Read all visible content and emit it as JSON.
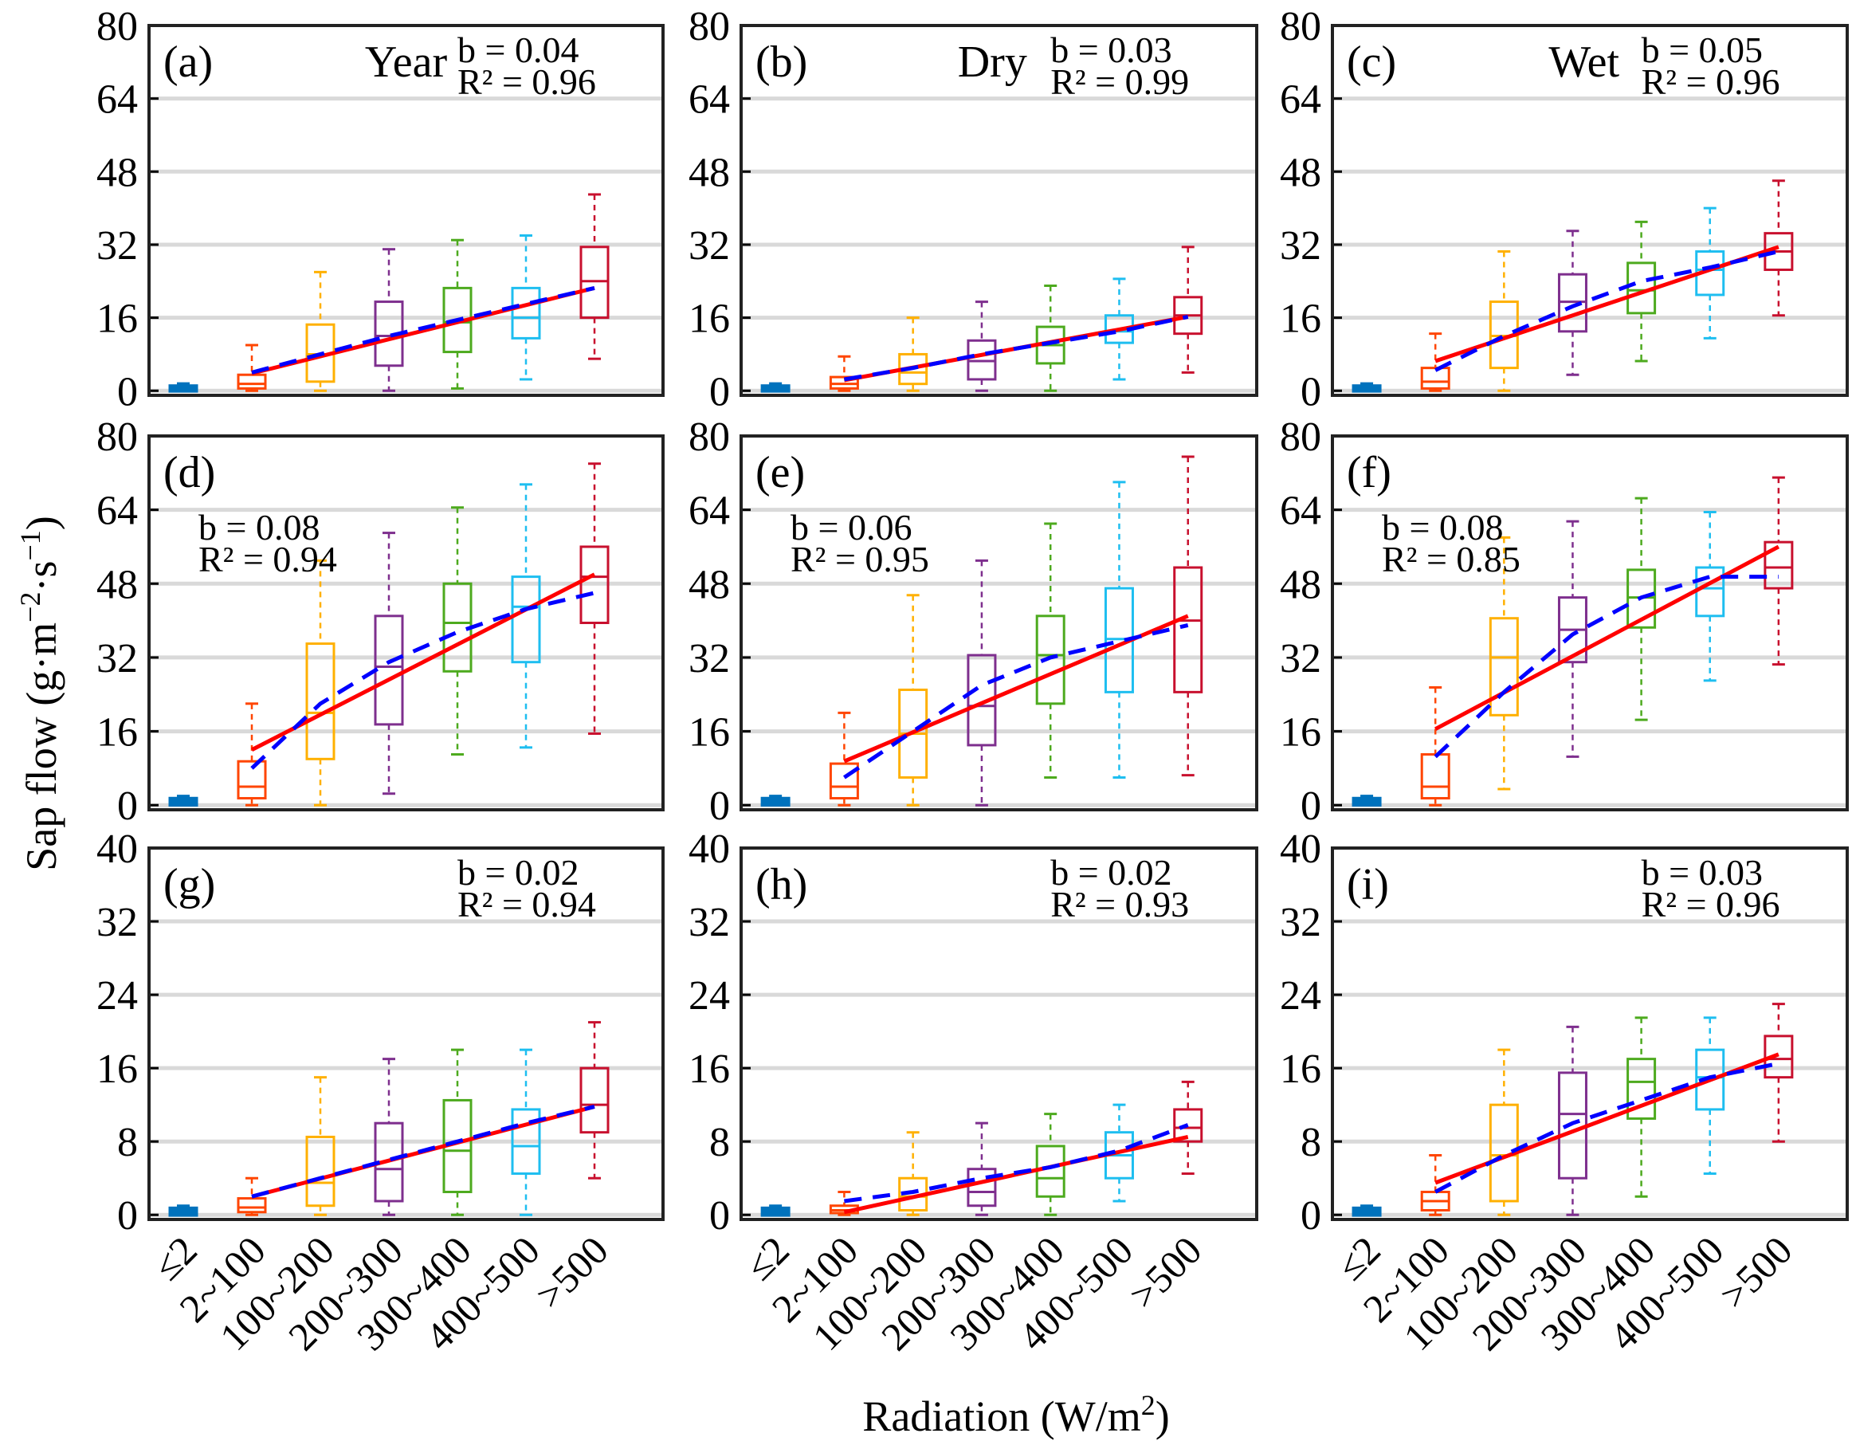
{
  "figure": {
    "ylabel_prefix": "Sap flow (g·m",
    "ylabel_exp1": "−2",
    "ylabel_mid": "·s",
    "ylabel_exp2": "−1",
    "ylabel_suffix": ")",
    "xlabel_prefix": "Radiation (W/m",
    "xlabel_exp": "2",
    "xlabel_suffix": ")",
    "categories": [
      "≤2",
      "2~100",
      "100~200",
      "200~300",
      "300~400",
      "400~500",
      ">500"
    ],
    "box_colors": [
      "#0072BD",
      "#FF4500",
      "#FFB000",
      "#7E2F8E",
      "#4DAA1E",
      "#1EBEF0",
      "#C8102E"
    ],
    "fit_color": "#FF0000",
    "trend_color": "#0000FF"
  },
  "chart_data": [
    {
      "type": "box",
      "id": "a",
      "label": "(a)",
      "title": "Year",
      "b_text": "b = 0.04",
      "r2_text": "R² = 0.96",
      "stats_pos": "top-right",
      "ylim": [
        -1,
        80
      ],
      "yticks": [
        0,
        16,
        32,
        48,
        64,
        80
      ],
      "boxes": [
        [
          0,
          0.2,
          0.5,
          0.8,
          1.6
        ],
        [
          0,
          0.5,
          1.5,
          3.5,
          10
        ],
        [
          0,
          2,
          8,
          14.5,
          26
        ],
        [
          0,
          5.5,
          12,
          19.5,
          31
        ],
        [
          0.5,
          8.5,
          15,
          22.5,
          33
        ],
        [
          2.5,
          11.5,
          16,
          22.5,
          34
        ],
        [
          7,
          16,
          24,
          31.5,
          43
        ]
      ],
      "fit_line": [
        [
          2,
          3.8
        ],
        [
          7,
          22.5
        ]
      ],
      "trend": [
        4,
        8,
        12,
        15.5,
        19,
        22.5
      ]
    },
    {
      "type": "box",
      "id": "b",
      "label": "(b)",
      "title": "Dry",
      "b_text": "b = 0.03",
      "r2_text": "R² = 0.99",
      "stats_pos": "top-right",
      "ylim": [
        -1,
        80
      ],
      "yticks": [
        0,
        16,
        32,
        48,
        64,
        80
      ],
      "boxes": [
        [
          0,
          0.2,
          0.5,
          0.8,
          1.6
        ],
        [
          0,
          0.5,
          1.5,
          3,
          7.5
        ],
        [
          0,
          1.5,
          4,
          8,
          16
        ],
        [
          0,
          2.5,
          6.5,
          11,
          19.5
        ],
        [
          0,
          6,
          10,
          14,
          23
        ],
        [
          2.5,
          10.5,
          13,
          16.5,
          24.5
        ],
        [
          4,
          12.5,
          16.5,
          20.5,
          31.5
        ]
      ],
      "fit_line": [
        [
          2,
          2.3
        ],
        [
          7,
          16.2
        ]
      ],
      "trend": [
        2.5,
        5,
        8,
        10.5,
        13,
        16.2
      ]
    },
    {
      "type": "box",
      "id": "c",
      "label": "(c)",
      "title": "Wet",
      "b_text": "b = 0.05",
      "r2_text": "R² = 0.96",
      "stats_pos": "top-right",
      "ylim": [
        -1,
        80
      ],
      "yticks": [
        0,
        16,
        32,
        48,
        64,
        80
      ],
      "boxes": [
        [
          0,
          0.2,
          0.5,
          0.8,
          1.6
        ],
        [
          0,
          0.5,
          2,
          5,
          12.5
        ],
        [
          0,
          5,
          12,
          19.5,
          30.5
        ],
        [
          3.5,
          13,
          19.5,
          25.5,
          35
        ],
        [
          6.5,
          17,
          22,
          28,
          37
        ],
        [
          11.5,
          21,
          26.5,
          30.5,
          40
        ],
        [
          16.5,
          26.5,
          30.5,
          34.5,
          46
        ]
      ],
      "fit_line": [
        [
          2,
          6.5
        ],
        [
          7,
          31.5
        ]
      ],
      "trend": [
        4.5,
        12,
        18.5,
        24,
        27,
        30.5
      ]
    },
    {
      "type": "box",
      "id": "d",
      "label": "(d)",
      "title": "",
      "b_text": "b = 0.08",
      "r2_text": "R² = 0.94",
      "stats_pos": "top-left",
      "ylim": [
        -1,
        80
      ],
      "yticks": [
        0,
        16,
        32,
        48,
        64,
        80
      ],
      "boxes": [
        [
          0,
          0.3,
          0.8,
          1.2,
          2
        ],
        [
          0,
          1.5,
          4,
          9.5,
          22
        ],
        [
          0,
          10,
          20,
          35,
          53
        ],
        [
          2.5,
          17.5,
          30,
          41,
          59
        ],
        [
          11,
          29,
          39.5,
          48,
          64.5
        ],
        [
          12.5,
          31,
          43,
          49.5,
          69.5
        ],
        [
          15.5,
          39.5,
          49.5,
          56,
          74
        ]
      ],
      "fit_line": [
        [
          2,
          12
        ],
        [
          7,
          50
        ]
      ],
      "trend": [
        8,
        22,
        31,
        37.5,
        42.5,
        46
      ]
    },
    {
      "type": "box",
      "id": "e",
      "label": "(e)",
      "title": "",
      "b_text": "b = 0.06",
      "r2_text": "R² = 0.95",
      "stats_pos": "top-left",
      "ylim": [
        -1,
        80
      ],
      "yticks": [
        0,
        16,
        32,
        48,
        64,
        80
      ],
      "boxes": [
        [
          0,
          0.3,
          0.8,
          1.2,
          2
        ],
        [
          0,
          1.5,
          4,
          9,
          20
        ],
        [
          0,
          6,
          15.5,
          25,
          45.5
        ],
        [
          0,
          13,
          21.5,
          32.5,
          53
        ],
        [
          6,
          22,
          32.5,
          41,
          61
        ],
        [
          6,
          24.5,
          36,
          47,
          70
        ],
        [
          6.5,
          24.5,
          40,
          51.5,
          75.5
        ]
      ],
      "fit_line": [
        [
          2,
          9.5
        ],
        [
          7,
          41
        ]
      ],
      "trend": [
        6,
        16,
        26,
        32,
        35.5,
        39
      ]
    },
    {
      "type": "box",
      "id": "f",
      "label": "(f)",
      "title": "",
      "b_text": "b = 0.08",
      "r2_text": "R² = 0.85",
      "stats_pos": "top-left",
      "ylim": [
        -1,
        80
      ],
      "yticks": [
        0,
        16,
        32,
        48,
        64,
        80
      ],
      "boxes": [
        [
          0,
          0.3,
          0.8,
          1.2,
          2
        ],
        [
          0,
          1.5,
          4,
          11,
          25.5
        ],
        [
          3.5,
          19.5,
          32,
          40.5,
          58
        ],
        [
          10.5,
          31,
          38,
          45,
          61.5
        ],
        [
          18.5,
          38.5,
          45,
          51,
          66.5
        ],
        [
          27,
          41,
          47,
          51.5,
          63.5
        ],
        [
          30.5,
          47,
          51.5,
          57,
          71
        ]
      ],
      "fit_line": [
        [
          2,
          16.5
        ],
        [
          7,
          56
        ]
      ],
      "trend": [
        10.5,
        24.5,
        37,
        45,
        49.5,
        49.5
      ]
    },
    {
      "type": "box",
      "id": "g",
      "label": "(g)",
      "title": "",
      "b_text": "b = 0.02",
      "r2_text": "R² = 0.94",
      "stats_pos": "top-right",
      "ylim": [
        -0.5,
        40
      ],
      "yticks": [
        0,
        8,
        16,
        24,
        32,
        40
      ],
      "boxes": [
        [
          0,
          0.1,
          0.4,
          0.6,
          1
        ],
        [
          0,
          0.3,
          0.8,
          1.8,
          4
        ],
        [
          0,
          1,
          3.5,
          8.5,
          15
        ],
        [
          0,
          1.5,
          5,
          10,
          17
        ],
        [
          0,
          2.5,
          7,
          12.5,
          18
        ],
        [
          0,
          4.5,
          7.5,
          11.5,
          18
        ],
        [
          4,
          9,
          12,
          16,
          21
        ]
      ],
      "fit_line": [
        [
          2,
          2
        ],
        [
          7,
          11.8
        ]
      ],
      "trend": [
        2,
        4,
        6,
        8,
        10,
        11.8
      ]
    },
    {
      "type": "box",
      "id": "h",
      "label": "(h)",
      "title": "",
      "b_text": "b = 0.02",
      "r2_text": "R² = 0.93",
      "stats_pos": "top-right",
      "ylim": [
        -0.5,
        40
      ],
      "yticks": [
        0,
        8,
        16,
        24,
        32,
        40
      ],
      "boxes": [
        [
          0,
          0.1,
          0.4,
          0.6,
          1
        ],
        [
          0,
          0.2,
          0.5,
          1,
          2.5
        ],
        [
          0,
          0.5,
          2,
          4,
          9
        ],
        [
          0,
          1,
          2.5,
          5,
          10
        ],
        [
          0,
          2,
          4,
          7.5,
          11
        ],
        [
          1.5,
          4,
          6.5,
          9,
          12
        ],
        [
          4.5,
          8,
          9.5,
          11.5,
          14.5
        ]
      ],
      "fit_line": [
        [
          2,
          0.3
        ],
        [
          7,
          8.5
        ]
      ],
      "trend": [
        1.5,
        2.5,
        4,
        5.2,
        7,
        9.8
      ]
    },
    {
      "type": "box",
      "id": "i",
      "label": "(i)",
      "title": "",
      "b_text": "b = 0.03",
      "r2_text": "R² = 0.96",
      "stats_pos": "top-right",
      "ylim": [
        -0.5,
        40
      ],
      "yticks": [
        0,
        8,
        16,
        24,
        32,
        40
      ],
      "boxes": [
        [
          0,
          0.1,
          0.4,
          0.6,
          1
        ],
        [
          0,
          0.5,
          1.5,
          2.5,
          6.5
        ],
        [
          0,
          1.5,
          6.5,
          12,
          18
        ],
        [
          0,
          4,
          11,
          15.5,
          20.5
        ],
        [
          2,
          10.5,
          14.5,
          17,
          21.5
        ],
        [
          4.5,
          11.5,
          15,
          18,
          21.5
        ],
        [
          8,
          15,
          17,
          19.5,
          23
        ]
      ],
      "fit_line": [
        [
          2,
          3.5
        ],
        [
          7,
          17.5
        ]
      ],
      "trend": [
        2.5,
        6.5,
        10,
        12.5,
        15,
        16.5
      ]
    }
  ]
}
